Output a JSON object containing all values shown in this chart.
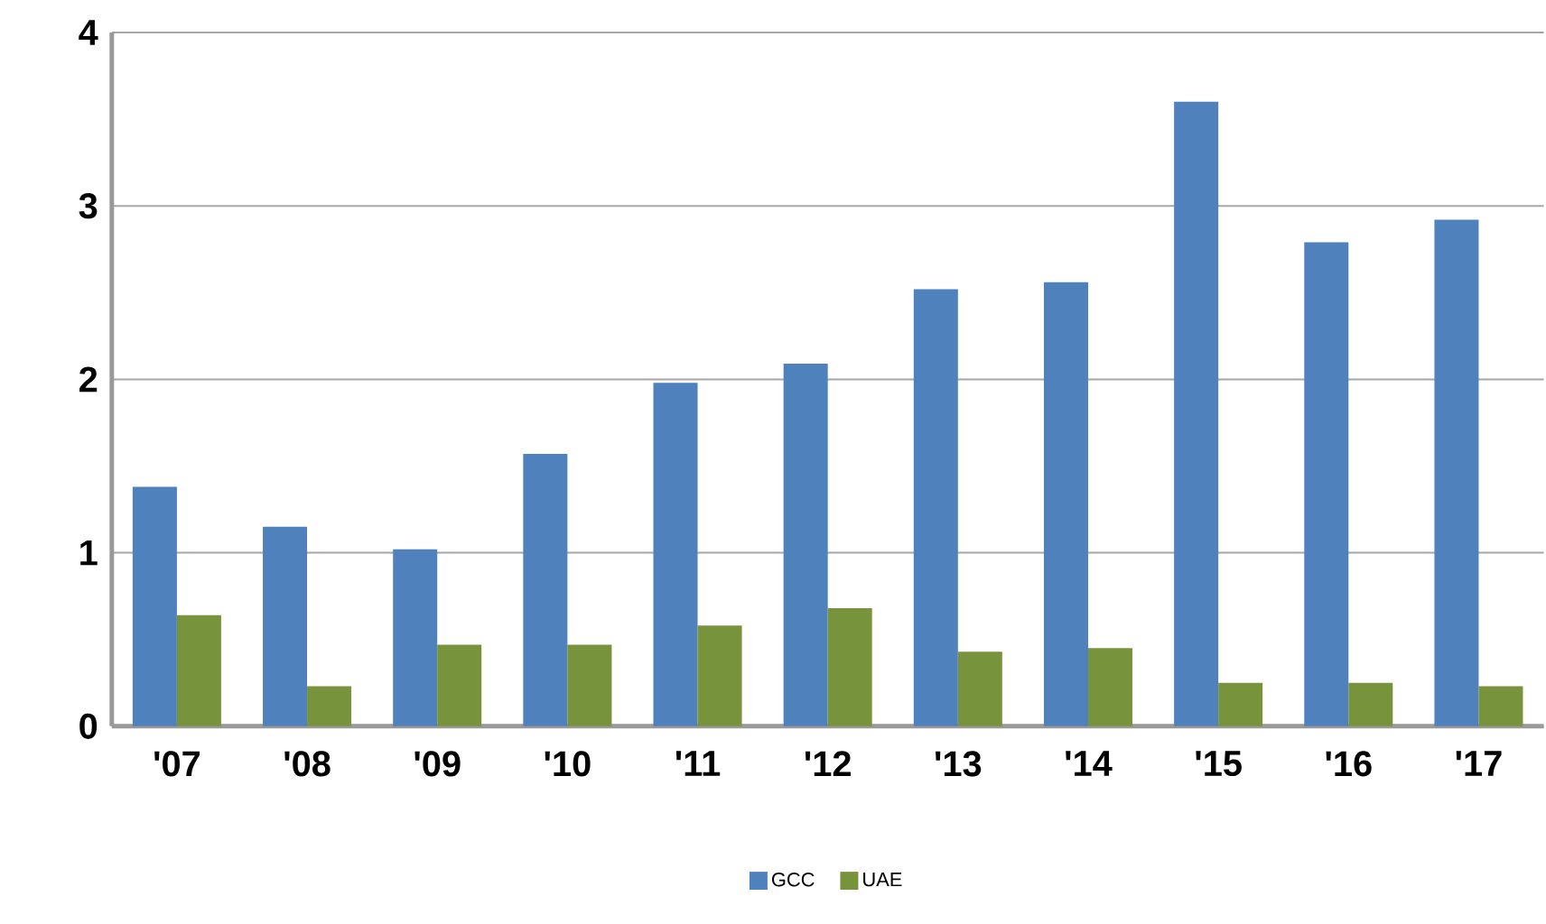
{
  "chart_data": {
    "type": "bar",
    "categories": [
      "'07",
      "'08",
      "'09",
      "'10",
      "'11",
      "'12",
      "'13",
      "'14",
      "'15",
      "'16",
      "'17"
    ],
    "series": [
      {
        "name": "GCC",
        "color": "#4f81bd",
        "values": [
          1.38,
          1.15,
          1.02,
          1.57,
          1.98,
          2.09,
          2.52,
          2.56,
          3.6,
          2.79,
          2.92
        ]
      },
      {
        "name": "UAE",
        "color": "#77933c",
        "values": [
          0.64,
          0.23,
          0.47,
          0.47,
          0.58,
          0.68,
          0.43,
          0.45,
          0.25,
          0.25,
          0.23
        ]
      }
    ],
    "ylim": [
      0,
      4
    ],
    "yticks": [
      0,
      1,
      2,
      3,
      4
    ],
    "grid": "y",
    "legend": "bottom"
  }
}
